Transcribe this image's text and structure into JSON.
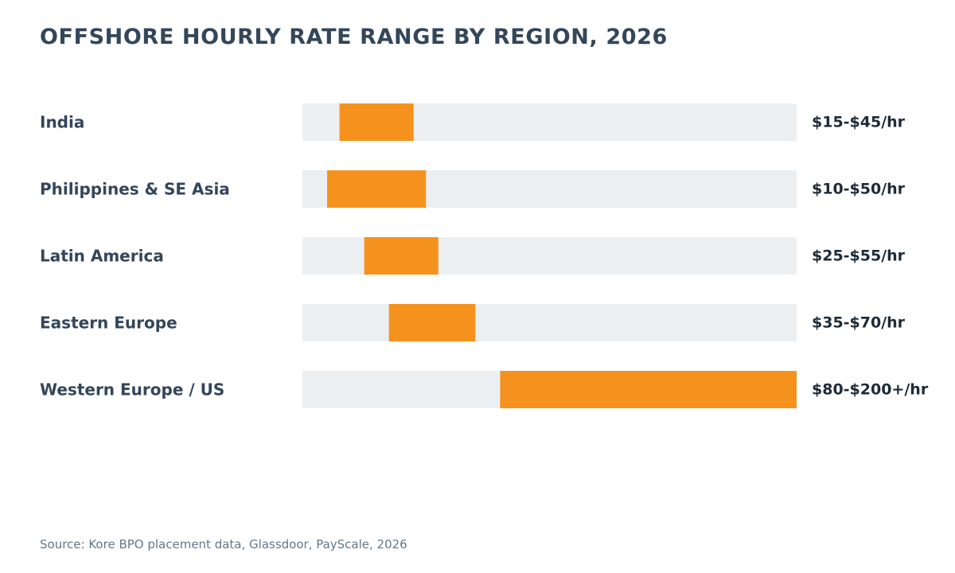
{
  "chart_data": {
    "type": "range-bar",
    "title": "OFFSHORE HOURLY RATE RANGE BY REGION, 2026",
    "xlim": [
      0,
      200
    ],
    "categories": [
      "India",
      "Philippines & SE Asia",
      "Latin America",
      "Eastern Europe",
      "Western Europe / US"
    ],
    "ranges": [
      {
        "low": 15,
        "high": 45
      },
      {
        "low": 10,
        "high": 50
      },
      {
        "low": 25,
        "high": 55
      },
      {
        "low": 35,
        "high": 70
      },
      {
        "low": 80,
        "high": 200
      }
    ],
    "value_labels": [
      "$15-$45/hr",
      "$10-$50/hr",
      "$25-$55/hr",
      "$35-$70/hr",
      "$80-$200+/hr"
    ],
    "grid": false,
    "legend": "none",
    "source": "Source: Kore BPO placement data, Glassdoor, PayScale, 2026"
  },
  "colors": {
    "range": "#f5921e",
    "track": "#eceff2",
    "category_text": "#33465a",
    "value_text": "#1d2b38",
    "title_text": "#33465a",
    "source_text": "#62788a"
  }
}
